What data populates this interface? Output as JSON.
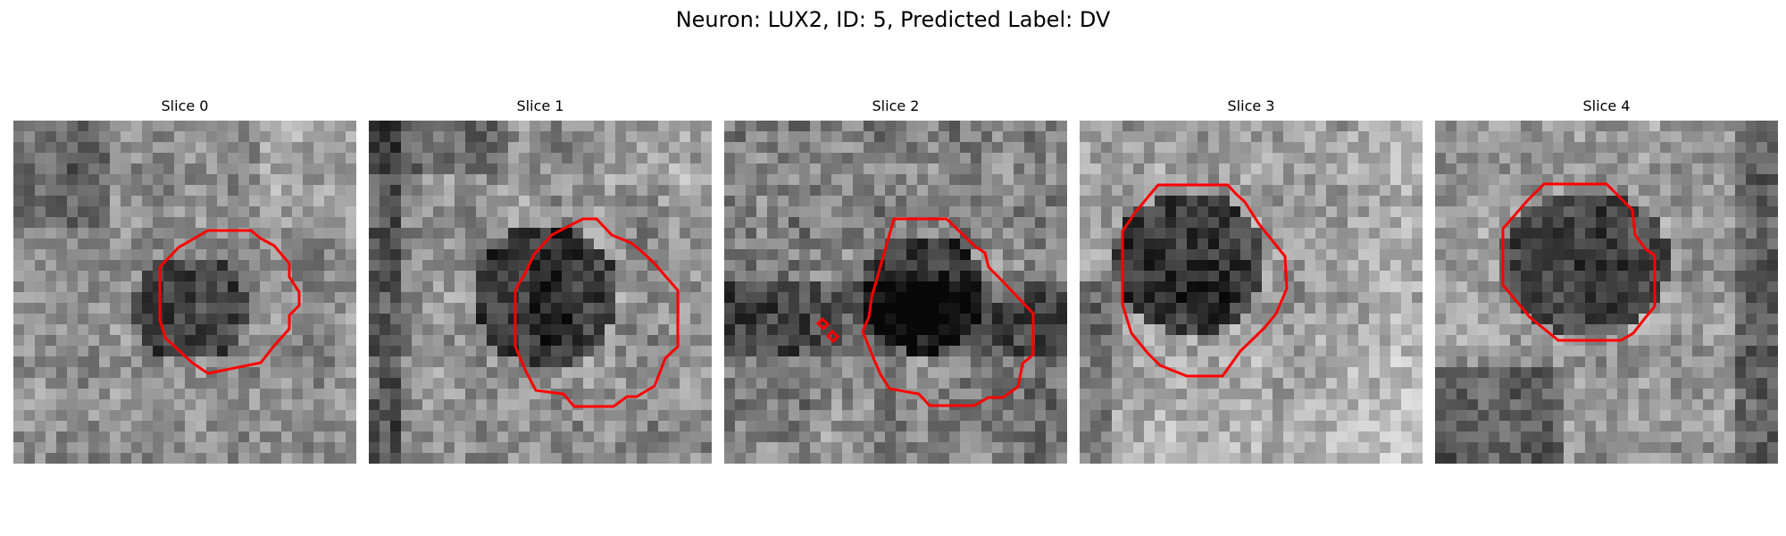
{
  "figure": {
    "title": "Neuron: LUX2, ID: 5, Predicted Label: DV"
  },
  "slices": [
    {
      "title": "Slice 0"
    },
    {
      "title": "Slice 1"
    },
    {
      "title": "Slice 2"
    },
    {
      "title": "Slice 3"
    },
    {
      "title": "Slice 4"
    }
  ],
  "colors": {
    "contour": "#ff0000",
    "background": "#ffffff"
  },
  "image_style": {
    "colormap": "grayscale",
    "pixel_grid": "coarse square pixels"
  }
}
